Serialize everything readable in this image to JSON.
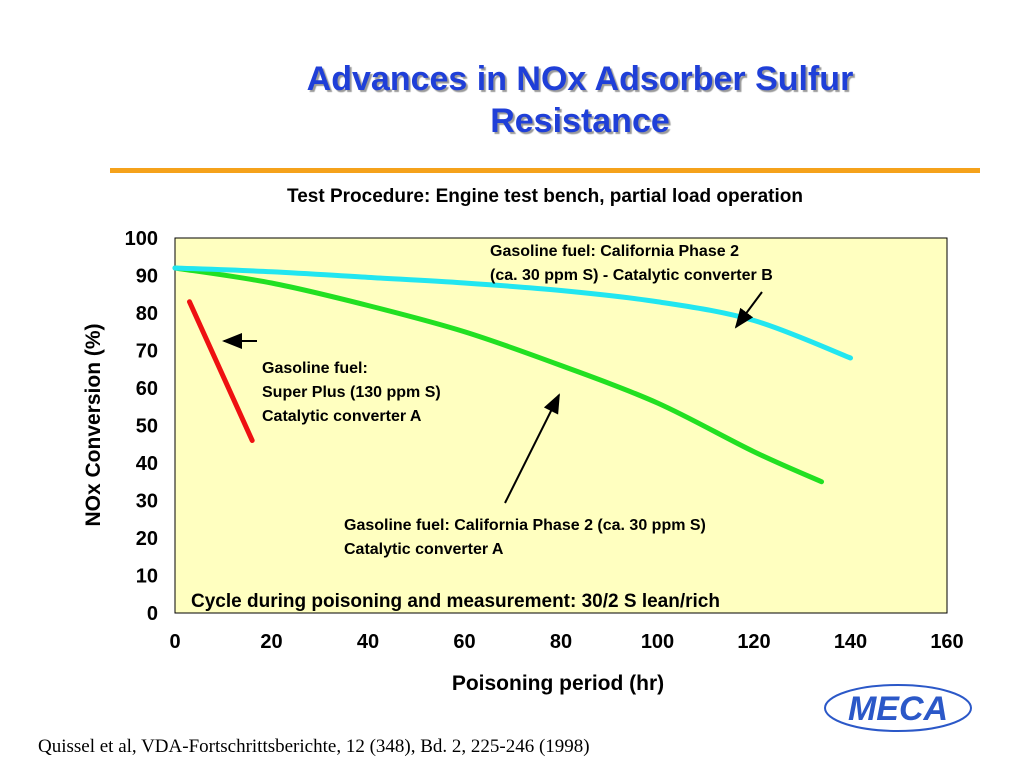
{
  "slide": {
    "title_line1": "Advances in NOx Adsorber Sulfur",
    "title_line2": "Resistance",
    "subtitle": "Test Procedure:  Engine test bench, partial load operation",
    "citation": "Quissel et al, VDA-Fortschrittsberichte, 12 (348), Bd. 2, 225-246 (1998)",
    "logo_text": "MECA",
    "colors": {
      "title": "#1f3fd8",
      "rule": "#f5a21b",
      "plot_bg": "#ffffc0",
      "logo": "#2b58c8"
    }
  },
  "chart_data": {
    "type": "line",
    "xlabel": "Poisoning period (hr)",
    "ylabel": "NOx Conversion (%)",
    "xlim": [
      0,
      160
    ],
    "ylim": [
      0,
      100
    ],
    "xticks": [
      "0",
      "20",
      "40",
      "60",
      "80",
      "100",
      "120",
      "140",
      "160"
    ],
    "yticks": [
      "0",
      "10",
      "20",
      "30",
      "40",
      "50",
      "60",
      "70",
      "80",
      "90",
      "100"
    ],
    "grid": false,
    "series": [
      {
        "name": "Gasoline fuel: Super Plus (130 ppm S) Catalytic converter A",
        "color": "#ee1111",
        "x": [
          3,
          16
        ],
        "y": [
          83,
          46
        ]
      },
      {
        "name": "Gasoline fuel: California Phase 2 (ca. 30 ppm S) Catalytic converter A",
        "color": "#22e022",
        "x": [
          0,
          20,
          40,
          60,
          80,
          100,
          120,
          134
        ],
        "y": [
          92,
          88,
          82,
          75,
          66,
          56,
          43,
          35
        ]
      },
      {
        "name": "Gasoline fuel: California Phase 2 (ca. 30 ppm S) - Catalytic converter B",
        "color": "#22e6f0",
        "x": [
          0,
          20,
          40,
          60,
          80,
          100,
          120,
          140
        ],
        "y": [
          92,
          91,
          89.5,
          88,
          86,
          83,
          78,
          68
        ]
      }
    ],
    "annotations": [
      {
        "name": "label-cat-b-line1",
        "text": "Gasoline fuel: California Phase 2"
      },
      {
        "name": "label-cat-b-line2",
        "text": "(ca. 30 ppm S) - Catalytic converter B"
      },
      {
        "name": "label-super-line1",
        "text": "Gasoline fuel:"
      },
      {
        "name": "label-super-line2",
        "text": "Super Plus (130 ppm S)"
      },
      {
        "name": "label-super-line3",
        "text": "Catalytic converter A"
      },
      {
        "name": "label-cat-a-line1",
        "text": "Gasoline fuel: California Phase 2 (ca. 30 ppm S)"
      },
      {
        "name": "label-cat-a-line2",
        "text": "Catalytic converter A"
      },
      {
        "name": "cycle-note",
        "text": "Cycle during poisoning and measurement:  30/2 S lean/rich"
      }
    ]
  }
}
